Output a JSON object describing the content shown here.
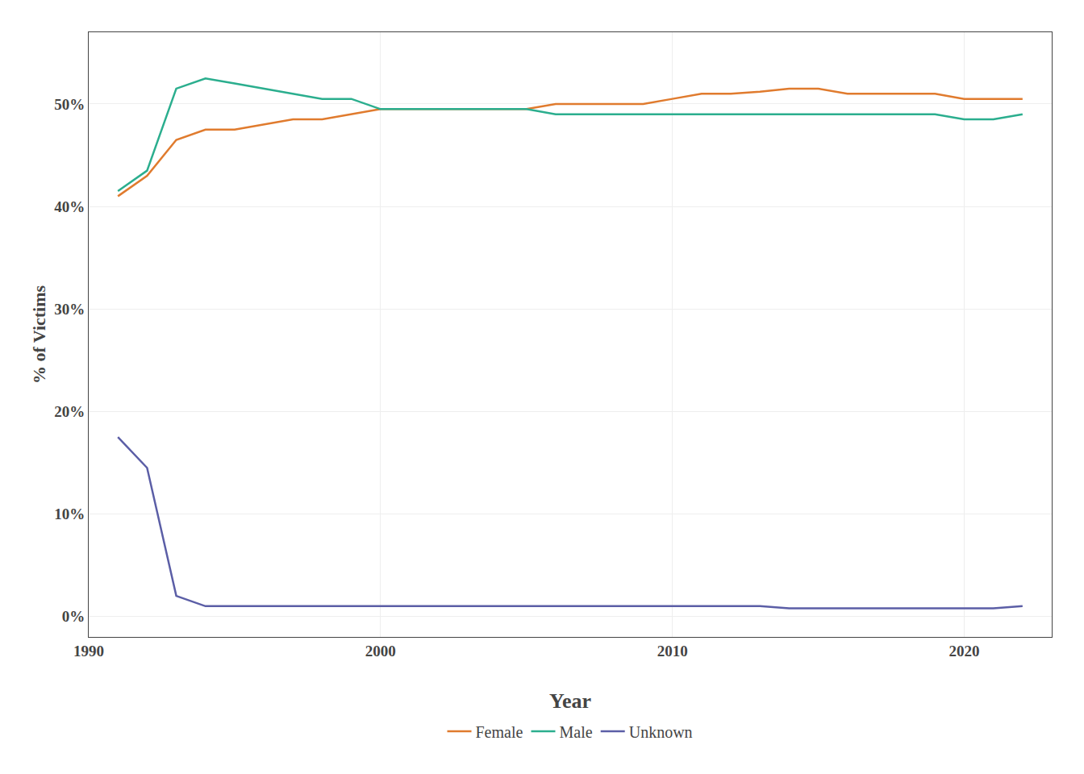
{
  "chart_data": {
    "type": "line",
    "xlabel": "Year",
    "ylabel": "% of Victims",
    "x": [
      1991,
      1992,
      1993,
      1994,
      1995,
      1996,
      1997,
      1998,
      1999,
      2000,
      2001,
      2002,
      2003,
      2004,
      2005,
      2006,
      2007,
      2008,
      2009,
      2010,
      2011,
      2012,
      2013,
      2014,
      2015,
      2016,
      2017,
      2018,
      2019,
      2020,
      2021,
      2022
    ],
    "series": [
      {
        "name": "Female",
        "color": "#E07B2E",
        "values": [
          41.0,
          43.0,
          46.5,
          47.5,
          47.5,
          48.0,
          48.5,
          48.5,
          49.0,
          49.5,
          49.5,
          49.5,
          49.5,
          49.5,
          49.5,
          50.0,
          50.0,
          50.0,
          50.0,
          50.5,
          51.0,
          51.0,
          51.2,
          51.5,
          51.5,
          51.0,
          51.0,
          51.0,
          51.0,
          50.5,
          50.5,
          50.5
        ]
      },
      {
        "name": "Male",
        "color": "#2BAE8E",
        "values": [
          41.5,
          43.5,
          51.5,
          52.5,
          52.0,
          51.5,
          51.0,
          50.5,
          50.5,
          49.5,
          49.5,
          49.5,
          49.5,
          49.5,
          49.5,
          49.0,
          49.0,
          49.0,
          49.0,
          49.0,
          49.0,
          49.0,
          49.0,
          49.0,
          49.0,
          49.0,
          49.0,
          49.0,
          49.0,
          48.5,
          48.5,
          49.0
        ]
      },
      {
        "name": "Unknown",
        "color": "#5B5EA6",
        "values": [
          17.5,
          14.5,
          2.0,
          1.0,
          1.0,
          1.0,
          1.0,
          1.0,
          1.0,
          1.0,
          1.0,
          1.0,
          1.0,
          1.0,
          1.0,
          1.0,
          1.0,
          1.0,
          1.0,
          1.0,
          1.0,
          1.0,
          1.0,
          0.8,
          0.8,
          0.8,
          0.8,
          0.8,
          0.8,
          0.8,
          0.8,
          1.0
        ]
      }
    ],
    "xlim": [
      1990,
      2023
    ],
    "xticks": [
      1990,
      2000,
      2010,
      2020
    ],
    "ylim": [
      -2,
      57
    ],
    "yticks": [
      {
        "value": 0,
        "label": "0%"
      },
      {
        "value": 10,
        "label": "10%"
      },
      {
        "value": 20,
        "label": "20%"
      },
      {
        "value": 30,
        "label": "30%"
      },
      {
        "value": 40,
        "label": "40%"
      },
      {
        "value": 50,
        "label": "50%"
      }
    ],
    "grid": true,
    "legend": "bottom"
  }
}
